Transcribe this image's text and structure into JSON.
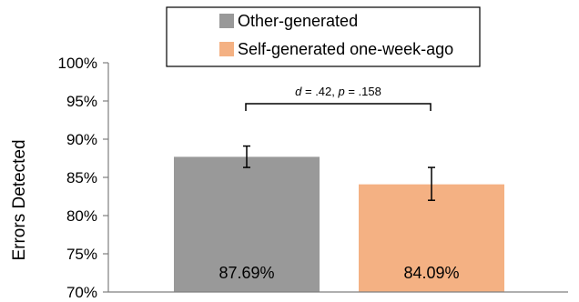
{
  "chart_data": {
    "type": "bar",
    "categories": [
      "Other-generated",
      "Self-generated one-week-ago"
    ],
    "values": [
      87.69,
      84.09
    ],
    "value_labels": [
      "87.69%",
      "84.09%"
    ],
    "error_bars": [
      [
        86.3,
        89.1
      ],
      [
        82.0,
        86.3
      ]
    ],
    "ylabel": "Errors Detected",
    "ylim": [
      70,
      100
    ],
    "yticks": [
      70,
      75,
      80,
      85,
      90,
      95,
      100
    ],
    "ytick_labels": [
      "70%",
      "75%",
      "80%",
      "85%",
      "90%",
      "95%",
      "100%"
    ],
    "colors": [
      "#999999",
      "#F4B183"
    ],
    "legend": {
      "placement": "top-center",
      "entries": [
        "Other-generated",
        "Self-generated one-week-ago"
      ]
    },
    "annotation": {
      "d_label": "d",
      "d_value": " = .42, ",
      "p_label": "p",
      "p_value": " = .158"
    },
    "grid": false
  }
}
